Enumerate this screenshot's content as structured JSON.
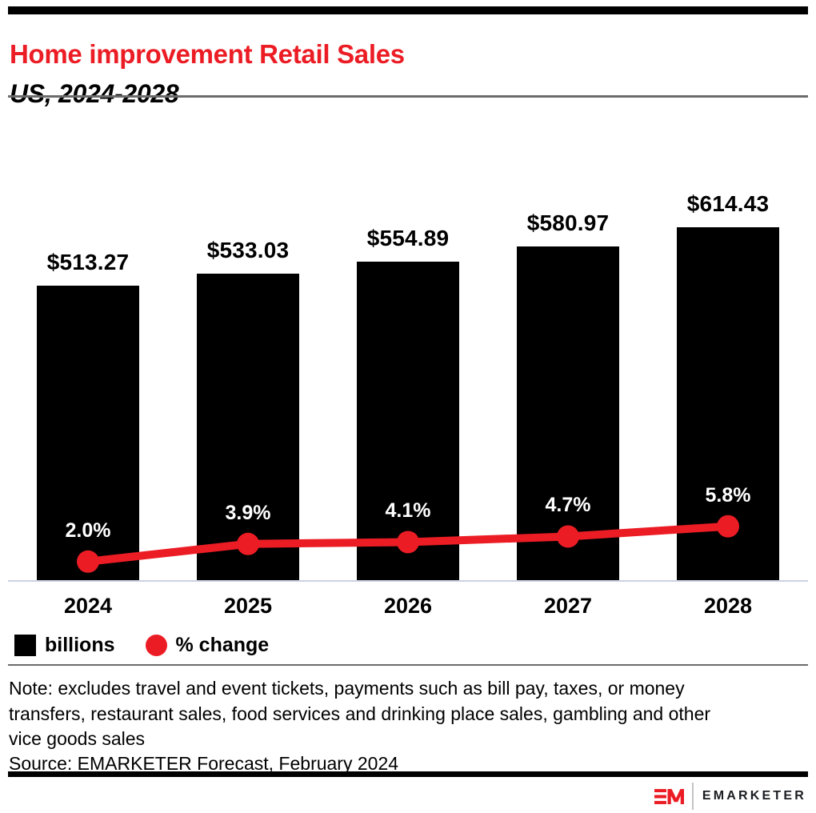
{
  "header": {
    "title": "Home improvement Retail Sales",
    "subtitle": "US, 2024-2028"
  },
  "legend": {
    "bar_label": "billions",
    "line_label": "% change"
  },
  "footnote": {
    "note_lines": [
      "Note: excludes travel and event tickets, payments such as bill pay, taxes, or money",
      "transfers, restaurant sales, food services and drinking place sales, gambling and other",
      "vice goods sales"
    ],
    "source": "Source: EMARKETER Forecast, February 2024"
  },
  "footer": {
    "brand": "EMARKETER"
  },
  "colors": {
    "brand_red": "#ec1c24",
    "bar_black": "#000000",
    "rule_gray": "#6b6b6b",
    "baseline_gray": "#ccd2e6",
    "wordmark_dark": "#1a1d21"
  },
  "chart_data": {
    "type": "bar",
    "title": "Home improvement Retail Sales",
    "subtitle": "US, 2024-2028",
    "categories": [
      "2024",
      "2025",
      "2026",
      "2027",
      "2028"
    ],
    "series": [
      {
        "name": "billions",
        "type": "bar",
        "color": "#000000",
        "values": [
          513.27,
          533.03,
          554.89,
          580.97,
          614.43
        ],
        "labels": [
          "$513.27",
          "$533.03",
          "$554.89",
          "$580.97",
          "$614.43"
        ]
      },
      {
        "name": "% change",
        "type": "line",
        "color": "#ec1c24",
        "values": [
          2.0,
          3.9,
          4.1,
          4.7,
          5.8
        ],
        "labels": [
          "2.0%",
          "3.9%",
          "4.1%",
          "4.7%",
          "5.8%"
        ]
      }
    ],
    "xlabel": "",
    "ylabel": "",
    "value_axis_visible": false,
    "grid": false,
    "legend_position": "bottom-left"
  }
}
